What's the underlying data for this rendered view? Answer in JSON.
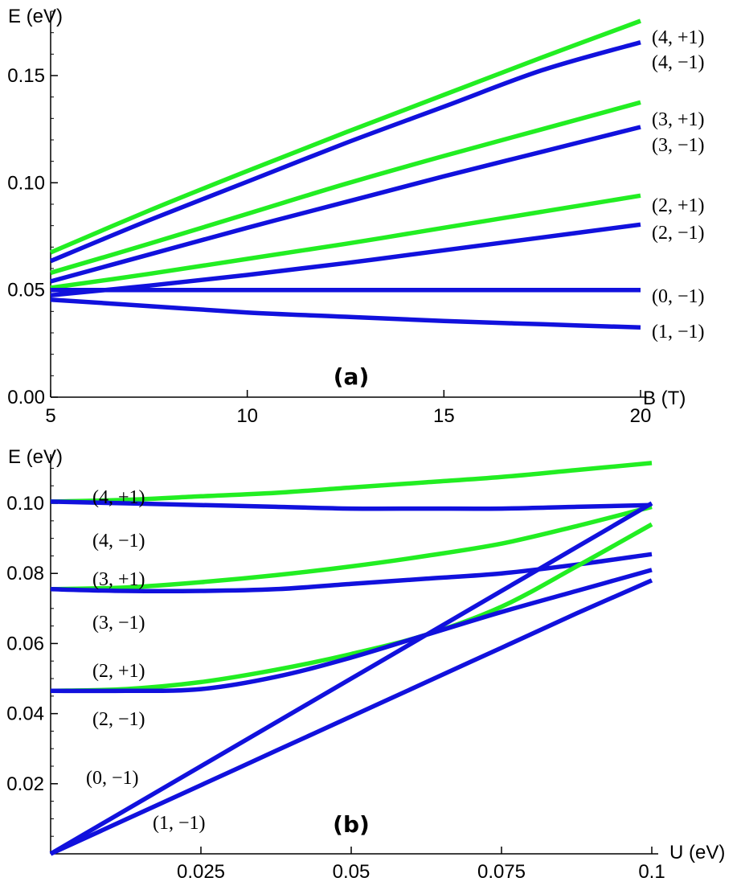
{
  "colors": {
    "spin_up": "#22ee22",
    "spin_down": "#1111dd",
    "axis": "#000000"
  },
  "chart_data": [
    {
      "type": "line",
      "panel_label": "(a)",
      "xlabel": "B (T)",
      "ylabel": "E (eV)",
      "xlim": [
        5,
        20
      ],
      "ylim": [
        0,
        0.18
      ],
      "xticks": [
        5,
        10,
        15,
        20
      ],
      "xtick_labels": [
        "5",
        "10",
        "15",
        "20"
      ],
      "yticks": [
        0,
        0.05,
        0.1,
        0.15
      ],
      "ytick_labels": [
        "0.00",
        "0.05",
        "0.10",
        "0.15"
      ],
      "grid": false,
      "x": [
        5,
        7.5,
        10,
        12.5,
        15,
        17.5,
        20
      ],
      "series": [
        {
          "name": "(4, +1)",
          "color": "spin_up",
          "values": [
            0.0675,
            0.087,
            0.1055,
            0.1235,
            0.141,
            0.1585,
            0.1755
          ]
        },
        {
          "name": "(4, −1)",
          "color": "spin_down",
          "values": [
            0.0635,
            0.0825,
            0.1005,
            0.1185,
            0.1355,
            0.1525,
            0.1655
          ]
        },
        {
          "name": "(3, +1)",
          "color": "spin_up",
          "values": [
            0.058,
            0.0715,
            0.0855,
            0.0995,
            0.1125,
            0.125,
            0.1375
          ]
        },
        {
          "name": "(3, −1)",
          "color": "spin_down",
          "values": [
            0.054,
            0.0665,
            0.079,
            0.091,
            0.103,
            0.1145,
            0.126
          ]
        },
        {
          "name": "(2, +1)",
          "color": "spin_up",
          "values": [
            0.051,
            0.0575,
            0.0645,
            0.0715,
            0.079,
            0.0865,
            0.094
          ]
        },
        {
          "name": "(2, −1)",
          "color": "spin_down",
          "values": [
            0.0475,
            0.052,
            0.057,
            0.0625,
            0.0685,
            0.0745,
            0.0805
          ]
        },
        {
          "name": "(0, −1)",
          "color": "spin_down",
          "values": [
            0.05,
            0.05,
            0.05,
            0.05,
            0.05,
            0.05,
            0.05
          ]
        },
        {
          "name": "(1, −1)",
          "color": "spin_down",
          "values": [
            0.0455,
            0.0425,
            0.0395,
            0.0375,
            0.0355,
            0.034,
            0.0325
          ]
        }
      ]
    },
    {
      "type": "line",
      "panel_label": "(b)",
      "xlabel": "U (eV)",
      "ylabel": "E (eV)",
      "xlim": [
        0,
        0.1
      ],
      "ylim": [
        0,
        0.114
      ],
      "xticks": [
        0.025,
        0.05,
        0.075,
        0.1
      ],
      "xtick_labels": [
        "0.025",
        "0.05",
        "0.075",
        "0.1"
      ],
      "yticks": [
        0.02,
        0.04,
        0.06,
        0.08,
        0.1
      ],
      "ytick_labels": [
        "0.02",
        "0.04",
        "0.06",
        "0.08",
        "0.10"
      ],
      "grid": false,
      "x": [
        0,
        0.0125,
        0.025,
        0.0375,
        0.05,
        0.0625,
        0.075,
        0.0875,
        0.1
      ],
      "series": [
        {
          "name": "(4, +1)",
          "color": "spin_up",
          "values": [
            0.1005,
            0.101,
            0.102,
            0.103,
            0.1045,
            0.106,
            0.1075,
            0.1095,
            0.1115
          ]
        },
        {
          "name": "(4, −1)",
          "color": "spin_down",
          "values": [
            0.1005,
            0.1,
            0.0995,
            0.099,
            0.0985,
            0.0985,
            0.0985,
            0.099,
            0.0995
          ]
        },
        {
          "name": "(3, +1)",
          "color": "spin_up",
          "values": [
            0.0755,
            0.076,
            0.0775,
            0.0795,
            0.082,
            0.085,
            0.0885,
            0.0935,
            0.099
          ]
        },
        {
          "name": "(3, −1)",
          "color": "spin_down",
          "values": [
            0.0755,
            0.075,
            0.075,
            0.0755,
            0.077,
            0.0785,
            0.08,
            0.0825,
            0.0855
          ]
        },
        {
          "name": "(2, +1)",
          "color": "spin_up",
          "values": [
            0.0465,
            0.047,
            0.049,
            0.0525,
            0.057,
            0.0625,
            0.0705,
            0.082,
            0.094
          ]
        },
        {
          "name": "(2, −1)",
          "color": "spin_down",
          "values": [
            0.0465,
            0.0465,
            0.047,
            0.0505,
            0.056,
            0.0625,
            0.069,
            0.075,
            0.081
          ]
        },
        {
          "name": "(0, −1)",
          "color": "spin_down",
          "values": [
            0,
            0.0125,
            0.025,
            0.0375,
            0.05,
            0.0625,
            0.075,
            0.0875,
            0.1
          ]
        },
        {
          "name": "(1, −1)",
          "color": "spin_down",
          "values": [
            0,
            0.0098,
            0.0196,
            0.0294,
            0.0392,
            0.049,
            0.0588,
            0.0686,
            0.078
          ]
        }
      ]
    }
  ]
}
